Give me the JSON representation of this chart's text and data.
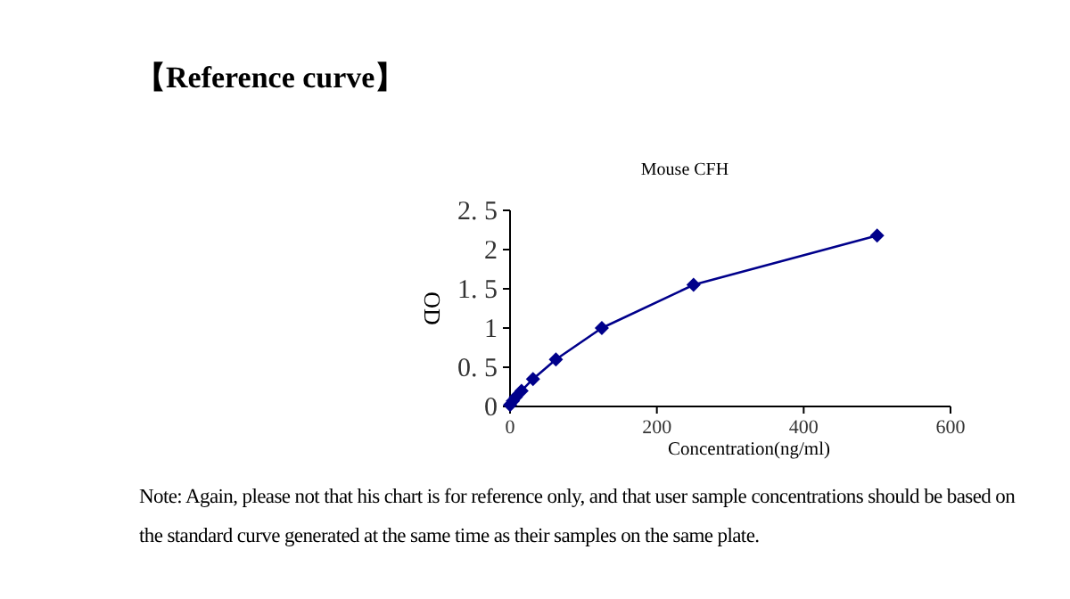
{
  "chart_data": {
    "type": "line",
    "title": "【Reference curve】",
    "subtitle": "Mouse CFH",
    "xlabel": "Concentration(ng/ml)",
    "ylabel": "OD",
    "x": [
      0,
      3.9,
      7.8,
      15.6,
      31.25,
      62.5,
      125,
      250,
      500
    ],
    "series": [
      {
        "color": "#00008b",
        "values": [
          0.02,
          0.07,
          0.12,
          0.2,
          0.35,
          0.6,
          1.0,
          1.55,
          2.18
        ]
      }
    ],
    "xlim": [
      0,
      600
    ],
    "xticks": [
      0,
      200,
      400,
      600
    ],
    "ylim": [
      0,
      2.5
    ],
    "yticks": [
      0,
      {
        "value": 0.5,
        "label": "0. 5"
      },
      1,
      {
        "value": 1.5,
        "label": "1. 5"
      },
      2,
      {
        "value": 2.5,
        "label": "2. 5"
      }
    ],
    "marker": "diamond",
    "line_style": "solid",
    "grid": false,
    "annotations": [
      "Note: Again, please not that his chart is for reference only, and that user sample concentrations should be based on the standard curve generated at the same time as their samples on the same plate."
    ]
  }
}
